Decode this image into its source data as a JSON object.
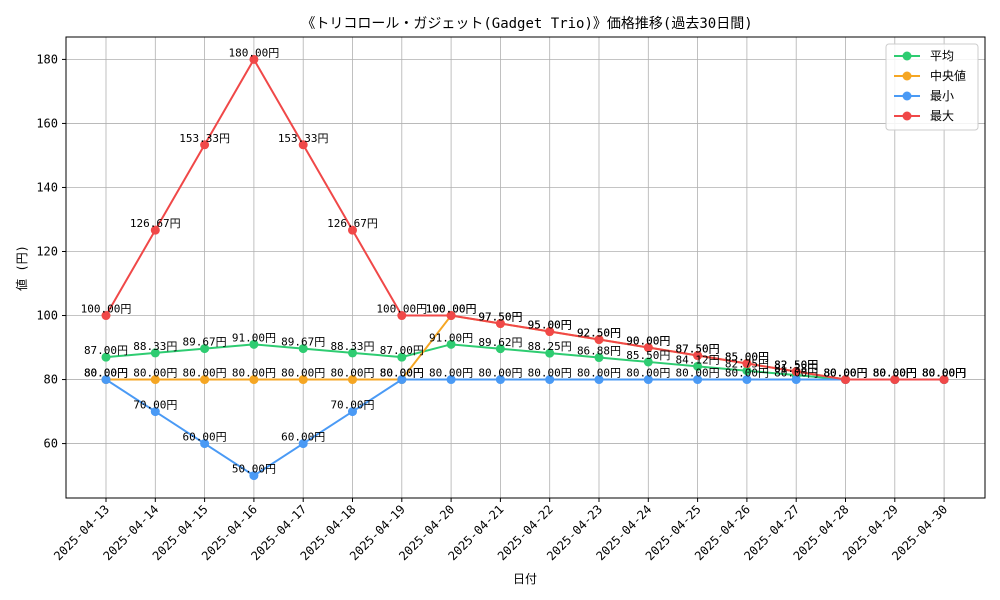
{
  "chart_data": {
    "type": "line",
    "title": "《トリコロール・ガジェット(Gadget Trio)》価格推移(過去30日間)",
    "xlabel": "日付",
    "ylabel": "値 (円)",
    "categories": [
      "2025-04-13",
      "2025-04-14",
      "2025-04-15",
      "2025-04-16",
      "2025-04-17",
      "2025-04-18",
      "2025-04-19",
      "2025-04-20",
      "2025-04-21",
      "2025-04-22",
      "2025-04-23",
      "2025-04-24",
      "2025-04-25",
      "2025-04-26",
      "2025-04-27",
      "2025-04-28",
      "2025-04-29",
      "2025-04-30"
    ],
    "ylim": [
      43,
      187
    ],
    "yticks": [
      60,
      80,
      100,
      120,
      140,
      160,
      180
    ],
    "grid": true,
    "legend_position": "top-right",
    "label_suffix": "円",
    "series": [
      {
        "name": "平均",
        "color": "#2ecc71",
        "values": [
          87.0,
          88.33,
          89.67,
          91.0,
          89.67,
          88.33,
          87.0,
          91.0,
          89.62,
          88.25,
          86.88,
          85.5,
          84.12,
          82.75,
          81.38,
          80.0,
          80.0,
          80.0
        ]
      },
      {
        "name": "中央値",
        "color": "#f5a623",
        "values": [
          80.0,
          80.0,
          80.0,
          80.0,
          80.0,
          80.0,
          80.0,
          100.0,
          97.5,
          95.0,
          92.5,
          90.0,
          87.5,
          85.0,
          82.5,
          80.0,
          80.0,
          80.0
        ]
      },
      {
        "name": "最小",
        "color": "#4a9af5",
        "values": [
          80.0,
          70.0,
          60.0,
          50.0,
          60.0,
          70.0,
          80.0,
          80.0,
          80.0,
          80.0,
          80.0,
          80.0,
          80.0,
          80.0,
          80.0,
          80.0,
          80.0,
          80.0
        ]
      },
      {
        "name": "最大",
        "color": "#f04848",
        "values": [
          100.0,
          126.67,
          153.33,
          180.0,
          153.33,
          126.67,
          100.0,
          100.0,
          97.5,
          95.0,
          92.5,
          90.0,
          87.5,
          85.0,
          82.5,
          80.0,
          80.0,
          80.0
        ]
      }
    ]
  }
}
